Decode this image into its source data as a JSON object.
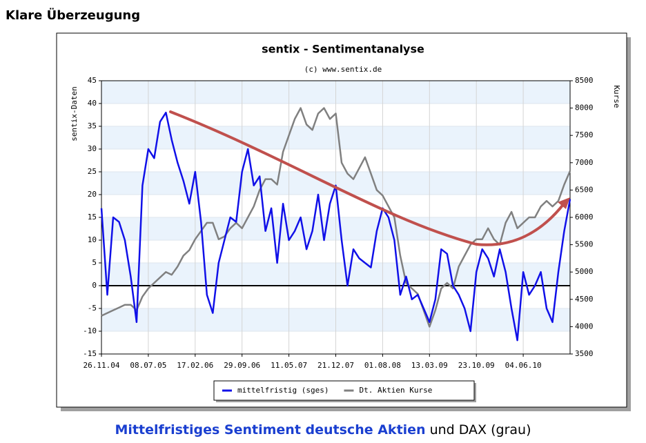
{
  "header": {
    "title": "Klare Überzeugung"
  },
  "chart_data": {
    "type": "line",
    "title": "sentix - Sentimentanalyse",
    "subtitle": "(c) www.sentix.de",
    "y_label": "sentix-Daten",
    "y2_label": "Kurse",
    "x": [
      "26.11.04",
      "24.12.04",
      "21.01.05",
      "18.02.05",
      "18.03.05",
      "15.04.05",
      "13.05.05",
      "10.06.05",
      "08.07.05",
      "05.08.05",
      "02.09.05",
      "30.09.05",
      "28.10.05",
      "25.11.05",
      "23.12.05",
      "20.01.06",
      "17.02.06",
      "17.03.06",
      "14.04.06",
      "12.05.06",
      "09.06.06",
      "07.07.06",
      "04.08.06",
      "01.09.06",
      "29.09.06",
      "27.10.06",
      "24.11.06",
      "22.12.06",
      "19.01.07",
      "16.02.07",
      "16.03.07",
      "13.04.07",
      "11.05.07",
      "08.06.07",
      "06.07.07",
      "03.08.07",
      "31.08.07",
      "28.09.07",
      "26.10.07",
      "23.11.07",
      "21.12.07",
      "18.01.08",
      "15.02.08",
      "14.03.08",
      "11.04.08",
      "09.05.08",
      "06.06.08",
      "04.07.08",
      "01.08.08",
      "29.08.08",
      "26.09.08",
      "24.10.08",
      "21.11.08",
      "19.12.08",
      "16.01.09",
      "13.02.09",
      "13.03.09",
      "10.04.09",
      "08.05.09",
      "05.06.09",
      "03.07.09",
      "31.07.09",
      "28.08.09",
      "25.09.09",
      "23.10.09",
      "20.11.09",
      "18.12.09",
      "15.01.10",
      "12.02.10",
      "12.03.10",
      "09.04.10",
      "07.05.10",
      "04.06.10",
      "02.07.10",
      "30.07.10",
      "27.08.10",
      "24.09.10",
      "22.10.10",
      "19.11.10",
      "17.12.10",
      "14.01.11"
    ],
    "series": [
      {
        "name": "mittelfristig (sges)",
        "color": "#1010e8",
        "axis": "y",
        "values": [
          17,
          -2,
          15,
          14,
          10,
          2,
          -8,
          22,
          30,
          28,
          36,
          38,
          32,
          27,
          23,
          18,
          25,
          14,
          -2,
          -6,
          5,
          10,
          15,
          14,
          25,
          30,
          22,
          24,
          12,
          17,
          5,
          18,
          10,
          12,
          15,
          8,
          12,
          20,
          10,
          18,
          22,
          10,
          0,
          8,
          6,
          5,
          4,
          12,
          17,
          15,
          10,
          -2,
          2,
          -3,
          -2,
          -5,
          -8,
          -3,
          8,
          7,
          0,
          -2,
          -5,
          -10,
          3,
          8,
          6,
          2,
          8,
          3,
          -5,
          -12,
          3,
          -2,
          0,
          3,
          -5,
          -8,
          3,
          12,
          19
        ]
      },
      {
        "name": "Dt. Aktien Kurse",
        "color": "#808080",
        "axis": "y2",
        "values": [
          4200,
          4250,
          4300,
          4350,
          4400,
          4400,
          4300,
          4550,
          4700,
          4800,
          4900,
          5000,
          4950,
          5100,
          5300,
          5400,
          5600,
          5750,
          5900,
          5900,
          5600,
          5650,
          5800,
          5900,
          5800,
          6000,
          6200,
          6500,
          6700,
          6700,
          6600,
          7200,
          7500,
          7800,
          8000,
          7700,
          7600,
          7900,
          8000,
          7800,
          7900,
          7000,
          6800,
          6700,
          6900,
          7100,
          6800,
          6500,
          6400,
          6200,
          6000,
          5300,
          4800,
          4700,
          4600,
          4300,
          4000,
          4300,
          4700,
          4800,
          4700,
          5100,
          5300,
          5500,
          5600,
          5600,
          5800,
          5600,
          5500,
          5900,
          6100,
          5800,
          5900,
          6000,
          6000,
          6200,
          6300,
          6200,
          6300,
          6600,
          6850
        ]
      }
    ],
    "xlim": [
      "26.11.04",
      "14.01.11"
    ],
    "xticks": [
      "26.11.04",
      "08.07.05",
      "17.02.06",
      "29.09.06",
      "11.05.07",
      "21.12.07",
      "01.08.08",
      "13.03.09",
      "23.10.09",
      "04.06.10"
    ],
    "ylim": [
      -15,
      45
    ],
    "yticks": [
      -15,
      -10,
      -5,
      0,
      5,
      10,
      15,
      20,
      25,
      30,
      35,
      40,
      45
    ],
    "y2lim": [
      3500,
      8500
    ],
    "y2ticks": [
      3500,
      4000,
      4500,
      5000,
      5500,
      6000,
      6500,
      7000,
      7500,
      8000,
      8500
    ],
    "grid": true,
    "zero_line": true,
    "legend": "bottom"
  },
  "caption": {
    "bold": "Mittelfristiges Sentiment deutsche Aktien",
    "rest": "und DAX (grau)"
  }
}
